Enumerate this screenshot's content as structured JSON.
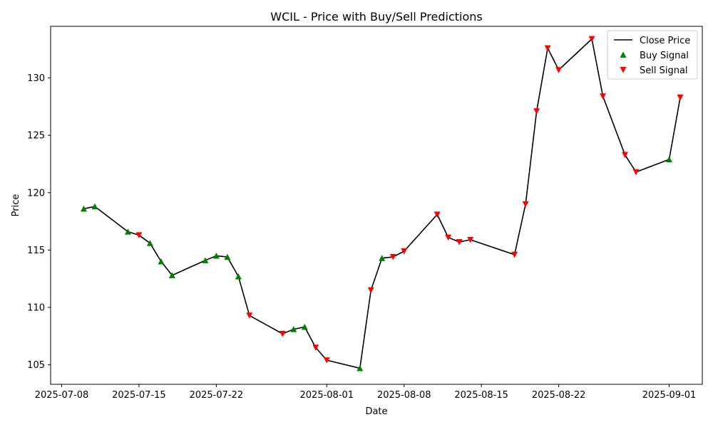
{
  "chart_data": {
    "type": "line",
    "title": "WCIL - Price with Buy/Sell Predictions",
    "xlabel": "Date",
    "ylabel": "Price",
    "xlim": [
      "2025-07-07",
      "2025-09-04"
    ],
    "ylim": [
      103.3,
      134.5
    ],
    "x_ticks": [
      "2025-07-08",
      "2025-07-15",
      "2025-07-22",
      "2025-08-01",
      "2025-08-08",
      "2025-08-15",
      "2025-08-22",
      "2025-09-01"
    ],
    "y_ticks": [
      105,
      110,
      115,
      120,
      125,
      130
    ],
    "grid": false,
    "legend_position": "top-right",
    "legend": [
      "Close Price",
      "Buy Signal",
      "Sell Signal"
    ],
    "colors": {
      "close": "#000000",
      "buy": "#008000",
      "sell": "#ff0000"
    },
    "series": [
      {
        "name": "Close Price",
        "points": [
          [
            "2025-07-10",
            118.6
          ],
          [
            "2025-07-11",
            118.8
          ],
          [
            "2025-07-14",
            116.6
          ],
          [
            "2025-07-15",
            116.3
          ],
          [
            "2025-07-16",
            115.6
          ],
          [
            "2025-07-17",
            114.0
          ],
          [
            "2025-07-18",
            112.8
          ],
          [
            "2025-07-21",
            114.1
          ],
          [
            "2025-07-22",
            114.5
          ],
          [
            "2025-07-23",
            114.4
          ],
          [
            "2025-07-24",
            112.7
          ],
          [
            "2025-07-25",
            109.3
          ],
          [
            "2025-07-28",
            107.7
          ],
          [
            "2025-07-29",
            108.1
          ],
          [
            "2025-07-30",
            108.3
          ],
          [
            "2025-07-31",
            106.5
          ],
          [
            "2025-08-01",
            105.4
          ],
          [
            "2025-08-04",
            104.7
          ],
          [
            "2025-08-05",
            111.5
          ],
          [
            "2025-08-06",
            114.3
          ],
          [
            "2025-08-07",
            114.4
          ],
          [
            "2025-08-08",
            114.9
          ],
          [
            "2025-08-11",
            118.1
          ],
          [
            "2025-08-12",
            116.1
          ],
          [
            "2025-08-13",
            115.7
          ],
          [
            "2025-08-14",
            115.9
          ],
          [
            "2025-08-18",
            114.6
          ],
          [
            "2025-08-19",
            119.0
          ],
          [
            "2025-08-20",
            127.1
          ],
          [
            "2025-08-21",
            132.6
          ],
          [
            "2025-08-22",
            130.7
          ],
          [
            "2025-08-25",
            133.4
          ],
          [
            "2025-08-26",
            128.4
          ],
          [
            "2025-08-28",
            123.3
          ],
          [
            "2025-08-29",
            121.8
          ],
          [
            "2025-09-01",
            122.9
          ],
          [
            "2025-09-02",
            128.3
          ]
        ]
      },
      {
        "name": "Buy Signal",
        "points": [
          [
            "2025-07-10",
            118.6
          ],
          [
            "2025-07-11",
            118.8
          ],
          [
            "2025-07-14",
            116.6
          ],
          [
            "2025-07-16",
            115.6
          ],
          [
            "2025-07-17",
            114.0
          ],
          [
            "2025-07-18",
            112.8
          ],
          [
            "2025-07-21",
            114.1
          ],
          [
            "2025-07-22",
            114.5
          ],
          [
            "2025-07-23",
            114.4
          ],
          [
            "2025-07-24",
            112.7
          ],
          [
            "2025-07-29",
            108.1
          ],
          [
            "2025-07-30",
            108.3
          ],
          [
            "2025-08-04",
            104.7
          ],
          [
            "2025-08-06",
            114.3
          ],
          [
            "2025-09-01",
            122.9
          ]
        ]
      },
      {
        "name": "Sell Signal",
        "points": [
          [
            "2025-07-15",
            116.3
          ],
          [
            "2025-07-25",
            109.3
          ],
          [
            "2025-07-28",
            107.7
          ],
          [
            "2025-07-31",
            106.5
          ],
          [
            "2025-08-01",
            105.4
          ],
          [
            "2025-08-05",
            111.5
          ],
          [
            "2025-08-07",
            114.4
          ],
          [
            "2025-08-08",
            114.9
          ],
          [
            "2025-08-11",
            118.1
          ],
          [
            "2025-08-12",
            116.1
          ],
          [
            "2025-08-13",
            115.7
          ],
          [
            "2025-08-14",
            115.9
          ],
          [
            "2025-08-18",
            114.6
          ],
          [
            "2025-08-19",
            119.0
          ],
          [
            "2025-08-20",
            127.1
          ],
          [
            "2025-08-21",
            132.6
          ],
          [
            "2025-08-22",
            130.7
          ],
          [
            "2025-08-25",
            133.4
          ],
          [
            "2025-08-26",
            128.4
          ],
          [
            "2025-08-28",
            123.3
          ],
          [
            "2025-08-29",
            121.8
          ],
          [
            "2025-09-02",
            128.3
          ]
        ]
      }
    ]
  }
}
